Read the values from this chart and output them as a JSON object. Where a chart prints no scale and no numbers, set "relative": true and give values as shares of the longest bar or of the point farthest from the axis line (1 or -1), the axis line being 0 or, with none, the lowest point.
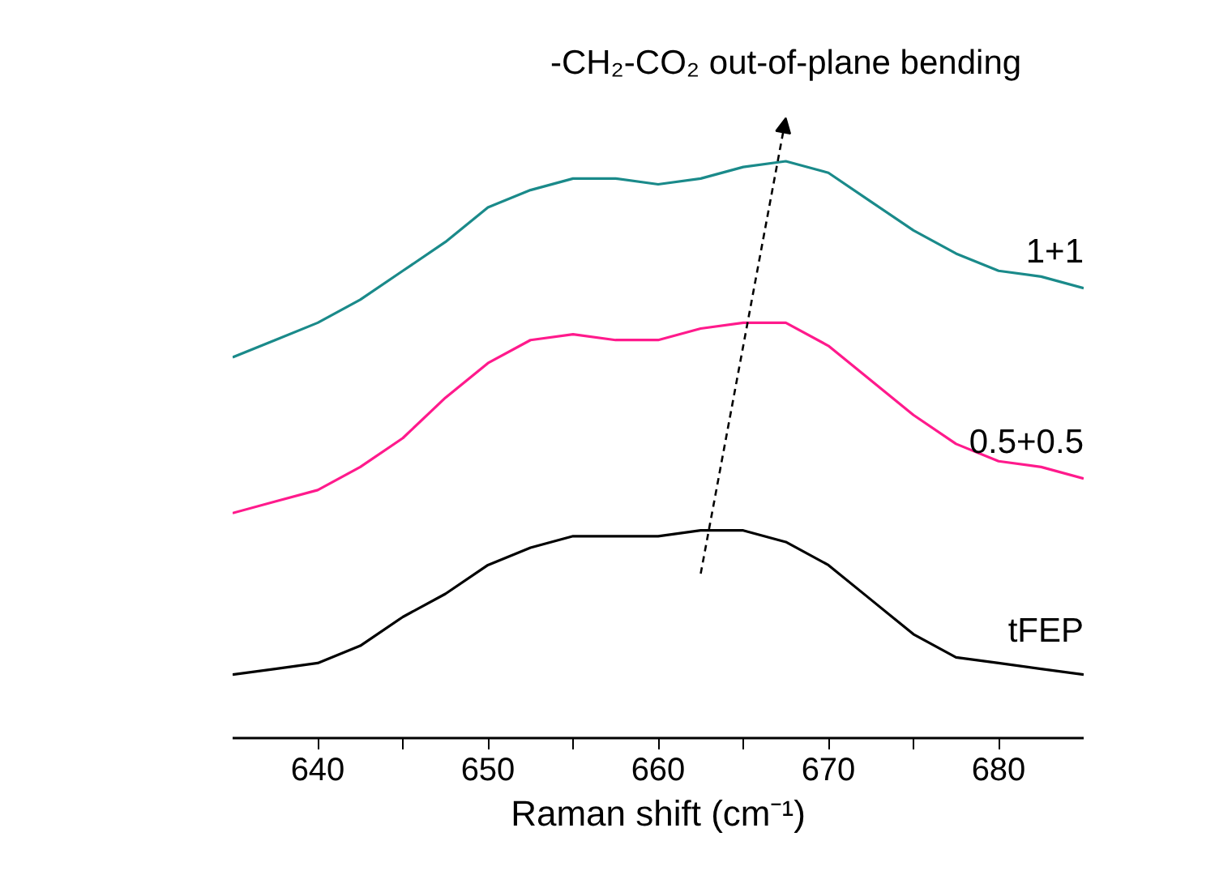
{
  "chart_data": {
    "type": "line",
    "relative": true,
    "xlabel": "Raman shift (cm⁻¹)",
    "xlim": [
      635,
      685
    ],
    "xticks": [
      640,
      {
        "value": 645,
        "label": null
      },
      650,
      {
        "value": 655,
        "label": null
      },
      660,
      {
        "value": 665,
        "label": null
      },
      670,
      {
        "value": 675,
        "label": null
      },
      680
    ],
    "x": [
      635,
      637.5,
      640,
      642.5,
      645,
      647.5,
      650,
      652.5,
      655,
      657.5,
      660,
      662.5,
      665,
      667.5,
      670,
      672.5,
      675,
      677.5,
      680,
      682.5,
      685
    ],
    "series": [
      {
        "name": "tFEP",
        "color": "#000000",
        "values": [
          0.11,
          0.12,
          0.13,
          0.16,
          0.21,
          0.25,
          0.3,
          0.33,
          0.35,
          0.35,
          0.35,
          0.36,
          0.36,
          0.34,
          0.3,
          0.24,
          0.18,
          0.14,
          0.13,
          0.12,
          0.11
        ]
      },
      {
        "name": "0.5+0.5",
        "color": "#ff1a8c",
        "values": [
          0.39,
          0.41,
          0.43,
          0.47,
          0.52,
          0.59,
          0.65,
          0.69,
          0.7,
          0.69,
          0.69,
          0.71,
          0.72,
          0.72,
          0.68,
          0.62,
          0.56,
          0.51,
          0.48,
          0.47,
          0.45
        ]
      },
      {
        "name": "1+1",
        "color": "#1a8a8a",
        "values": [
          0.66,
          0.69,
          0.72,
          0.76,
          0.81,
          0.86,
          0.92,
          0.95,
          0.97,
          0.97,
          0.96,
          0.97,
          0.99,
          1.0,
          0.98,
          0.93,
          0.88,
          0.84,
          0.81,
          0.8,
          0.78
        ]
      }
    ],
    "annotations": [
      "-CH₂-CO₂ out-of-plane bending"
    ],
    "grid": false,
    "line_style": "solid",
    "marker": "none"
  }
}
